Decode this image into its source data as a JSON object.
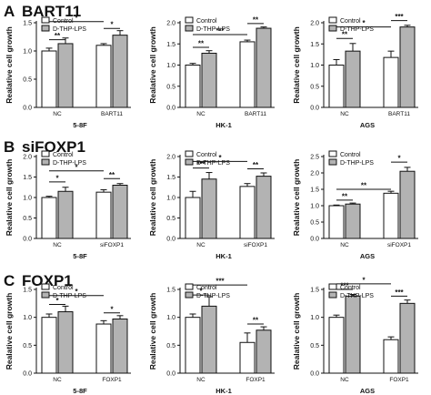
{
  "colors": {
    "control": "#ffffff",
    "treated": "#b3b3b3",
    "stroke": "#111111"
  },
  "chart_data": [
    {
      "row_letter": "A",
      "row_title": "BART11",
      "type": "bar",
      "panel": "5-8F",
      "xlabel": "5-8F",
      "ylabel": "Realative cell growth",
      "ylim": [
        0,
        1.5
      ],
      "yticks": [
        "0.0",
        "0.5",
        "1.0",
        "1.5"
      ],
      "categories": [
        "NC",
        "BART11"
      ],
      "series": [
        {
          "name": "Control",
          "values": [
            1.0,
            1.1
          ],
          "errors": [
            0.05,
            0.03
          ]
        },
        {
          "name": "D-THP-LPS",
          "values": [
            1.13,
            1.28
          ],
          "errors": [
            0.1,
            0.08
          ]
        }
      ],
      "annotations": [
        {
          "label": "**",
          "from": 0,
          "to": 1,
          "y": 1.2
        },
        {
          "label": "*",
          "from": 2,
          "to": 3,
          "y": 1.4
        },
        {
          "label": "*",
          "from": 0,
          "to": 2,
          "y": 1.52
        }
      ]
    },
    {
      "row_letter": "A",
      "row_title": "BART11",
      "type": "bar",
      "panel": "HK-1",
      "xlabel": "HK-1",
      "ylabel": "Realative cell growth",
      "ylim": [
        0,
        2.0
      ],
      "yticks": [
        "0.0",
        "0.5",
        "1.0",
        "1.5",
        "2.0"
      ],
      "categories": [
        "NC",
        "BART11"
      ],
      "series": [
        {
          "name": "Control",
          "values": [
            1.0,
            1.55
          ],
          "errors": [
            0.04,
            0.04
          ]
        },
        {
          "name": "D-THP-LPS",
          "values": [
            1.28,
            1.87
          ],
          "errors": [
            0.06,
            0.03
          ]
        }
      ],
      "annotations": [
        {
          "label": "**",
          "from": 0,
          "to": 1,
          "y": 1.42
        },
        {
          "label": "**",
          "from": 2,
          "to": 3,
          "y": 1.98
        },
        {
          "label": "***",
          "from": 0,
          "to": 2,
          "y": 1.72
        }
      ]
    },
    {
      "row_letter": "A",
      "row_title": "BART11",
      "type": "bar",
      "panel": "AGS",
      "xlabel": "AGS",
      "ylabel": "Realative cell growth",
      "ylim": [
        0,
        2.0
      ],
      "yticks": [
        "0.0",
        "0.5",
        "1.0",
        "1.5",
        "2.0"
      ],
      "categories": [
        "NC",
        "BART11"
      ],
      "series": [
        {
          "name": "Control",
          "values": [
            1.0,
            1.18
          ],
          "errors": [
            0.13,
            0.15
          ]
        },
        {
          "name": "D-THP-LPS",
          "values": [
            1.33,
            1.9
          ],
          "errors": [
            0.18,
            0.04
          ]
        }
      ],
      "annotations": [
        {
          "label": "**",
          "from": 0,
          "to": 1,
          "y": 1.63
        },
        {
          "label": "***",
          "from": 2,
          "to": 3,
          "y": 2.05
        },
        {
          "label": "*",
          "from": 0,
          "to": 2,
          "y": 1.9
        }
      ]
    },
    {
      "row_letter": "B",
      "row_title": "siFOXP1",
      "type": "bar",
      "panel": "5-8F",
      "xlabel": "5-8F",
      "ylabel": "Realative cell growth",
      "ylim": [
        0,
        2.0
      ],
      "yticks": [
        "0.0",
        "0.5",
        "1.0",
        "1.5",
        "2.0"
      ],
      "categories": [
        "NC",
        "siFOXP1"
      ],
      "series": [
        {
          "name": "Control",
          "values": [
            1.0,
            1.13
          ],
          "errors": [
            0.03,
            0.06
          ]
        },
        {
          "name": "D-THP-LPS",
          "values": [
            1.15,
            1.3
          ],
          "errors": [
            0.1,
            0.04
          ]
        }
      ],
      "annotations": [
        {
          "label": "*",
          "from": 0,
          "to": 1,
          "y": 1.38
        },
        {
          "label": "**",
          "from": 2,
          "to": 3,
          "y": 1.46
        },
        {
          "label": "*",
          "from": 0,
          "to": 2,
          "y": 1.65
        }
      ]
    },
    {
      "row_letter": "B",
      "row_title": "siFOXP1",
      "type": "bar",
      "panel": "HK-1",
      "xlabel": "HK-1",
      "ylabel": "Realative cell growth",
      "ylim": [
        0,
        2.0
      ],
      "yticks": [
        "0.0",
        "0.5",
        "1.0",
        "1.5",
        "2.0"
      ],
      "categories": [
        "NC",
        "siFOXP1"
      ],
      "series": [
        {
          "name": "Control",
          "values": [
            1.0,
            1.27
          ],
          "errors": [
            0.15,
            0.07
          ]
        },
        {
          "name": "D-THP-LPS",
          "values": [
            1.45,
            1.52
          ],
          "errors": [
            0.16,
            0.08
          ]
        }
      ],
      "annotations": [
        {
          "label": "***",
          "from": 0,
          "to": 1,
          "y": 1.72
        },
        {
          "label": "**",
          "from": 2,
          "to": 3,
          "y": 1.7
        },
        {
          "label": "*",
          "from": 0,
          "to": 2,
          "y": 1.88
        }
      ]
    },
    {
      "row_letter": "B",
      "row_title": "siFOXP1",
      "type": "bar",
      "panel": "AGS",
      "xlabel": "AGS",
      "ylabel": "Realative cell growth",
      "ylim": [
        0,
        2.5
      ],
      "yticks": [
        "0.0",
        "0.5",
        "1.0",
        "1.5",
        "2.0",
        "2.5"
      ],
      "categories": [
        "NC",
        "siFOXP1"
      ],
      "series": [
        {
          "name": "Control",
          "values": [
            1.0,
            1.38
          ],
          "errors": [
            0.02,
            0.06
          ]
        },
        {
          "name": "D-THP-LPS",
          "values": [
            1.05,
            2.05
          ],
          "errors": [
            0.03,
            0.12
          ]
        }
      ],
      "annotations": [
        {
          "label": "**",
          "from": 0,
          "to": 1,
          "y": 1.17
        },
        {
          "label": "*",
          "from": 2,
          "to": 3,
          "y": 2.33
        },
        {
          "label": "**",
          "from": 0,
          "to": 2,
          "y": 1.5
        }
      ]
    },
    {
      "row_letter": "C",
      "row_title": "FOXP1",
      "type": "bar",
      "panel": "5-8F",
      "xlabel": "5-8F",
      "ylabel": "Realative cell growth",
      "ylim": [
        0,
        1.5
      ],
      "yticks": [
        "0.0",
        "0.5",
        "1.0",
        "1.5"
      ],
      "categories": [
        "NC",
        "FOXP1"
      ],
      "series": [
        {
          "name": "Control",
          "values": [
            1.0,
            0.88
          ],
          "errors": [
            0.06,
            0.06
          ]
        },
        {
          "name": "D-THP-LPS",
          "values": [
            1.1,
            0.97
          ],
          "errors": [
            0.1,
            0.06
          ]
        }
      ],
      "annotations": [
        {
          "label": "*",
          "from": 0,
          "to": 1,
          "y": 1.23
        },
        {
          "label": "*",
          "from": 2,
          "to": 3,
          "y": 1.08
        },
        {
          "label": "*",
          "from": 0,
          "to": 2,
          "y": 1.39
        }
      ]
    },
    {
      "row_letter": "C",
      "row_title": "FOXP1",
      "type": "bar",
      "panel": "HK-1",
      "xlabel": "HK-1",
      "ylabel": "Realative cell growth",
      "ylim": [
        0,
        1.5
      ],
      "yticks": [
        "0.0",
        "0.5",
        "1.0",
        "1.5"
      ],
      "categories": [
        "NC",
        "FOXP1"
      ],
      "series": [
        {
          "name": "Control",
          "values": [
            1.0,
            0.55
          ],
          "errors": [
            0.06,
            0.17
          ]
        },
        {
          "name": "D-THP-LPS",
          "values": [
            1.2,
            0.77
          ],
          "errors": [
            0.17,
            0.06
          ]
        }
      ],
      "annotations": [
        {
          "label": "*",
          "from": 0,
          "to": 1,
          "y": 1.4
        },
        {
          "label": "**",
          "from": 2,
          "to": 3,
          "y": 0.88
        },
        {
          "label": "***",
          "from": 0,
          "to": 2,
          "y": 1.58
        }
      ]
    },
    {
      "row_letter": "C",
      "row_title": "FOXP1",
      "type": "bar",
      "panel": "AGS",
      "xlabel": "AGS",
      "ylabel": "Realative cell growth",
      "ylim": [
        0,
        1.5
      ],
      "yticks": [
        "0.0",
        "0.5",
        "1.0",
        "1.5"
      ],
      "categories": [
        "NC",
        "FOXP1"
      ],
      "series": [
        {
          "name": "Control",
          "values": [
            1.0,
            0.6
          ],
          "errors": [
            0.04,
            0.05
          ]
        },
        {
          "name": "D-THP-LPS",
          "values": [
            1.38,
            1.25
          ],
          "errors": [
            0.03,
            0.06
          ]
        }
      ],
      "annotations": [
        {
          "label": "***",
          "from": 0,
          "to": 1,
          "y": 1.5
        },
        {
          "label": "***",
          "from": 2,
          "to": 3,
          "y": 1.38
        },
        {
          "label": "*",
          "from": 0,
          "to": 2,
          "y": 1.6
        }
      ]
    }
  ]
}
